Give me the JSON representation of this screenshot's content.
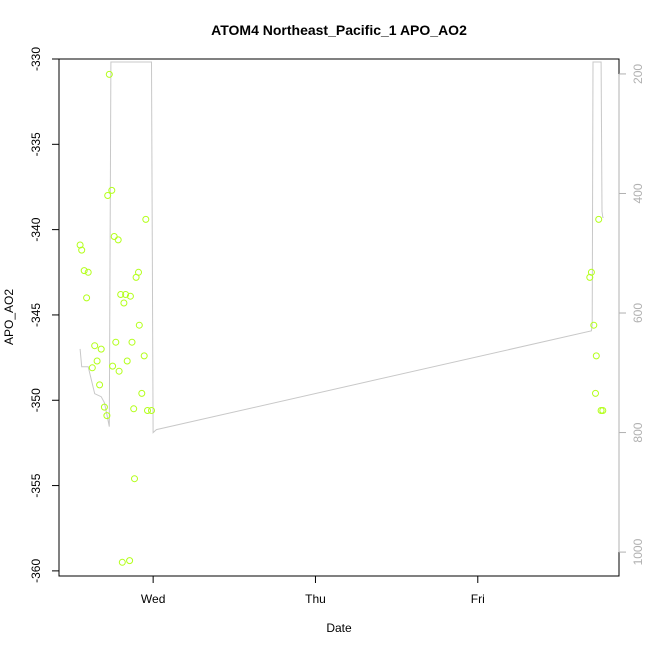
{
  "chart_data": {
    "type": "scatter",
    "title": "ATOM4 Northeast_Pacific_1 APO_AO2",
    "xlabel": "Date",
    "ylabel": "APO_AO2",
    "x_ticks": [
      {
        "label": "Wed",
        "value": 1.0
      },
      {
        "label": "Thu",
        "value": 2.0
      },
      {
        "label": "Fri",
        "value": 3.0
      }
    ],
    "xlim": [
      0.42,
      3.87
    ],
    "ylim": [
      -360.3,
      -330.0
    ],
    "y_ticks": [
      -330,
      -335,
      -340,
      -345,
      -350,
      -355,
      -360
    ],
    "y2_label": "",
    "y2_ticks": [
      200,
      400,
      600,
      800,
      1000
    ],
    "y2lim": [
      175,
      1040
    ],
    "y2_reversed": true,
    "grid": false,
    "colors": {
      "points": "#b3ff1a",
      "trace": "#c8c8c8",
      "axis": "#000000",
      "right_axis": "#b0b0b0"
    },
    "series": [
      {
        "x": [
          0.55,
          0.56,
          0.575,
          0.59,
          0.6,
          0.625,
          0.64,
          0.655,
          0.67,
          0.68,
          0.7,
          0.715,
          0.72,
          0.73,
          0.745,
          0.75,
          0.76,
          0.77,
          0.785,
          0.79,
          0.8,
          0.81,
          0.82,
          0.83,
          0.84,
          0.855,
          0.86,
          0.87,
          0.88,
          0.885,
          0.895,
          0.91,
          0.915,
          0.93,
          0.945,
          0.955,
          0.965,
          0.99,
          3.69,
          3.7,
          3.715,
          3.725,
          3.73,
          3.745,
          3.76,
          3.77
        ],
        "y": [
          -340.9,
          -341.2,
          -342.4,
          -344.0,
          -342.5,
          -348.1,
          -346.8,
          -347.7,
          -349.1,
          -347.0,
          -350.4,
          -350.9,
          -338.0,
          -330.9,
          -337.7,
          -348.0,
          -340.4,
          -346.6,
          -340.6,
          -348.3,
          -343.8,
          -359.5,
          -344.3,
          -343.8,
          -347.7,
          -359.4,
          -343.9,
          -346.6,
          -350.5,
          -354.6,
          -342.8,
          -342.5,
          -345.6,
          -349.6,
          -347.4,
          -339.4,
          -350.6,
          -350.6,
          -342.8,
          -342.5,
          -345.6,
          -349.6,
          -347.4,
          -339.4,
          -350.6,
          -350.6
        ]
      }
    ],
    "trace": {
      "x": [
        0.55,
        0.56,
        0.6,
        0.64,
        0.68,
        0.7,
        0.715,
        0.73,
        0.74,
        0.75,
        0.765,
        0.78,
        0.79,
        0.8,
        0.81,
        0.82,
        0.83,
        0.84,
        0.85,
        0.86,
        0.87,
        0.88,
        0.89,
        0.9,
        0.91,
        0.915,
        0.92,
        0.93,
        0.94,
        0.95,
        0.96,
        0.97,
        0.98,
        0.99,
        1.0,
        1.02,
        3.7,
        3.705,
        3.71,
        3.72,
        3.725,
        3.73,
        3.74,
        3.75,
        3.76,
        3.765,
        3.77,
        3.775
      ],
      "y2": [
        660,
        690,
        690,
        735,
        740,
        750,
        770,
        790,
        180,
        180,
        180,
        180,
        180,
        180,
        180,
        180,
        180,
        180,
        180,
        180,
        180,
        180,
        180,
        180,
        180,
        180,
        180,
        180,
        180,
        180,
        180,
        180,
        180,
        180,
        800,
        795,
        630,
        620,
        180,
        180,
        180,
        180,
        180,
        180,
        180,
        430,
        440,
        440
      ]
    }
  }
}
